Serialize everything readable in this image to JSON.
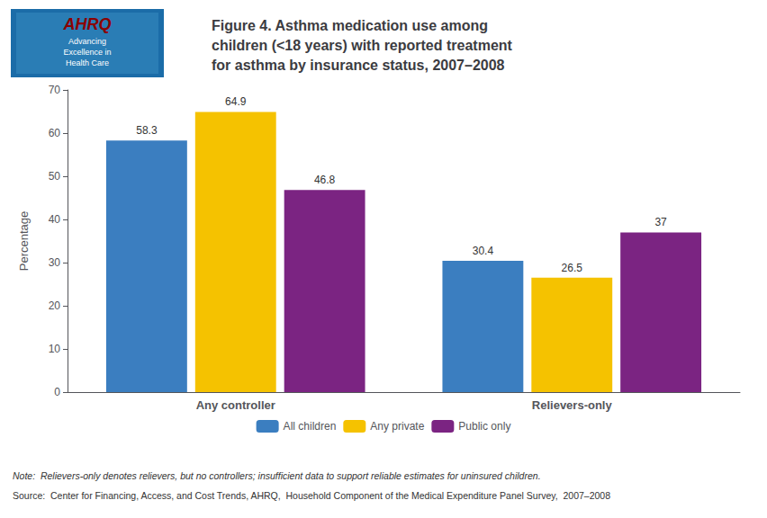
{
  "chart_data": {
    "type": "bar",
    "title": "Figure 4. Asthma medication use among\nchildren (<18 years) with reported treatment\nfor asthma by insurance status, 2007–2008",
    "ylabel": "Percentage",
    "categories": [
      "Any controller",
      "Relievers-only"
    ],
    "series": [
      {
        "name": "All children",
        "color": "#3B7EC0",
        "values": [
          58.3,
          30.4
        ]
      },
      {
        "name": "Any private",
        "color": "#F5C200",
        "values": [
          64.9,
          26.5
        ]
      },
      {
        "name": "Public only",
        "color": "#7B2482",
        "values": [
          46.8,
          37.0
        ]
      }
    ],
    "ylim": [
      0,
      70
    ],
    "yticks": [
      0,
      10,
      20,
      30,
      40,
      50,
      60,
      70
    ],
    "grid": false,
    "legend": "bottom",
    "data_labels": true,
    "annotations": [
      "Note:  Relievers-only denotes relievers, but no controllers; insufficient data to support reliable estimates for uninsured children.",
      "Source:  Center for Financing, Access, and Cost Trends, AHRQ,  Household Component of the Medical Expenditure Panel Survey,  2007–2008",
      "AHRQ",
      "Advancing\nExcellence in\nHealth Care"
    ]
  }
}
